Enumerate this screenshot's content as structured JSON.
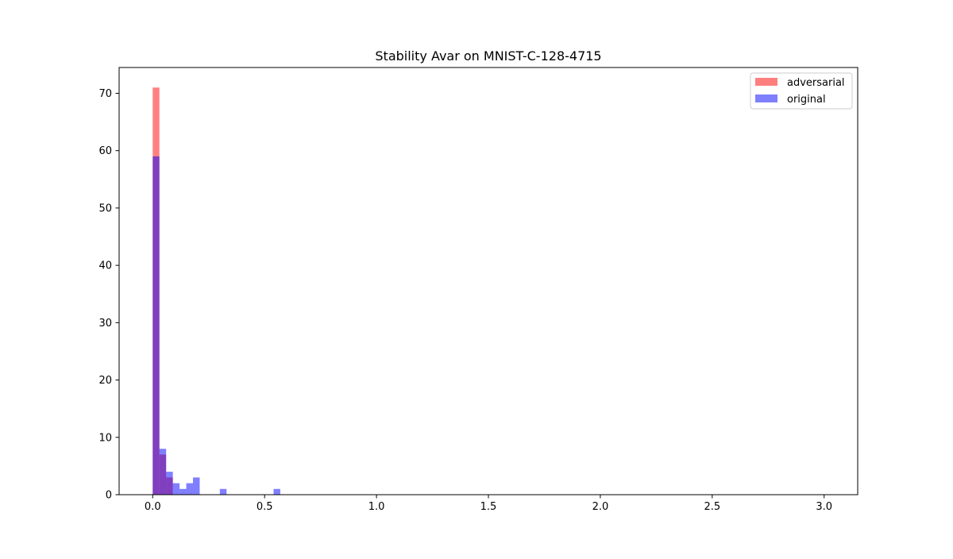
{
  "chart_data": {
    "type": "bar",
    "title": "Stability Avar on MNIST-C-128-4715",
    "xlabel": "",
    "ylabel": "",
    "xlim": [
      -0.15,
      3.15
    ],
    "ylim": [
      0,
      74.5
    ],
    "xticks": [
      0.0,
      0.5,
      1.0,
      1.5,
      2.0,
      2.5,
      3.0
    ],
    "xtick_labels": [
      "0.0",
      "0.5",
      "1.0",
      "1.5",
      "2.0",
      "2.5",
      "3.0"
    ],
    "yticks": [
      0,
      10,
      20,
      30,
      40,
      50,
      60,
      70
    ],
    "ytick_labels": [
      "0",
      "10",
      "20",
      "30",
      "40",
      "50",
      "60",
      "70"
    ],
    "bin_width": 0.03,
    "legend_position": "top-right",
    "series": [
      {
        "name": "adversarial",
        "color": "#ff0000",
        "opacity": 0.5,
        "bins": [
          {
            "x": 0.0,
            "count": 71
          },
          {
            "x": 0.03,
            "count": 7
          },
          {
            "x": 0.06,
            "count": 3
          }
        ]
      },
      {
        "name": "original",
        "color": "#0000ff",
        "opacity": 0.5,
        "bins": [
          {
            "x": 0.0,
            "count": 59
          },
          {
            "x": 0.03,
            "count": 8
          },
          {
            "x": 0.06,
            "count": 4
          },
          {
            "x": 0.09,
            "count": 2
          },
          {
            "x": 0.12,
            "count": 1
          },
          {
            "x": 0.15,
            "count": 2
          },
          {
            "x": 0.18,
            "count": 3
          },
          {
            "x": 0.3,
            "count": 1
          },
          {
            "x": 0.54,
            "count": 1
          }
        ]
      }
    ]
  }
}
